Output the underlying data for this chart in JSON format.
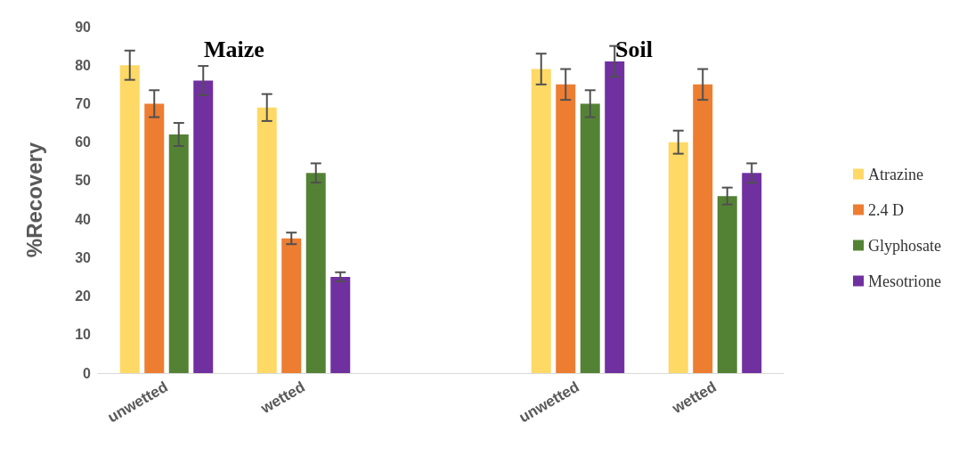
{
  "chart_data": {
    "type": "bar",
    "ylabel": "%Recovery",
    "categories": [
      "unwetted",
      "wetted",
      null,
      "unwetted",
      "wetted"
    ],
    "series": [
      {
        "name": "Atrazine",
        "color": "#ffd966",
        "values": [
          80,
          69,
          null,
          79,
          60
        ],
        "errors": [
          3.8,
          3.5,
          null,
          4,
          3
        ]
      },
      {
        "name": "2.4 D",
        "color": "#ed7d31",
        "values": [
          70,
          35,
          null,
          75,
          75
        ],
        "errors": [
          3.5,
          1.5,
          null,
          4,
          4
        ]
      },
      {
        "name": "Glyphosate",
        "color": "#548235",
        "values": [
          62,
          52,
          null,
          70,
          46
        ],
        "errors": [
          3,
          2.5,
          null,
          3.5,
          2.2
        ]
      },
      {
        "name": "Mesotrione",
        "color": "#7030a0",
        "values": [
          76,
          25,
          null,
          81,
          52
        ],
        "errors": [
          3.8,
          1.2,
          null,
          4,
          2.5
        ]
      }
    ],
    "ylim": [
      0,
      90
    ],
    "yticks": [
      0,
      10,
      20,
      30,
      40,
      50,
      60,
      70,
      80,
      90
    ],
    "grid": false,
    "legend": "right",
    "annotations": [
      "Maize",
      "Soil"
    ]
  }
}
